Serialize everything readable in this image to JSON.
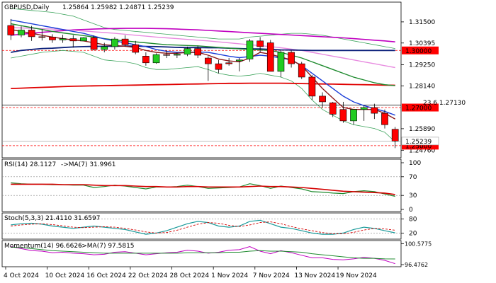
{
  "chart_data": [
    {
      "type": "candlestick",
      "symbol": "GBPUSD,Daily",
      "ohlc_readout": "1.25864 1.25982 1.24871 1.25239",
      "x_labels": [
        "4 Oct 2024",
        "10 Oct 2024",
        "16 Oct 2024",
        "22 Oct 2024",
        "28 Oct 2024",
        "1 Nov 2024",
        "7 Nov 2024",
        "13 Nov 2024",
        "19 Nov 2024"
      ],
      "x_label_index": [
        0,
        4,
        8,
        12,
        16,
        20,
        24,
        28,
        32
      ],
      "y_ticks": [
        1.315,
        1.3039,
        1.2925,
        1.2814,
        1.2589,
        1.2476
      ],
      "y_tick_labels": [
        "1.31500",
        "1.30395",
        "1.29250",
        "1.28140",
        "1.25890",
        "1.24760"
      ],
      "ylim": [
        1.244,
        1.325
      ],
      "levels": [
        {
          "value": 1.3,
          "label": "1.30000",
          "color": "#ff0000",
          "style": "dashed"
        },
        {
          "value": 1.27,
          "label": "1.27000",
          "color": "#ff0000",
          "style": "dashed"
        },
        {
          "value": 1.25,
          "label": "1.25000",
          "color": "#ff0000",
          "style": "dashed"
        }
      ],
      "current_price": {
        "value": 1.2524,
        "label": "1.25239"
      },
      "fib_level": {
        "value": 1.2713,
        "label": "23.6 1.27130"
      },
      "candles": [
        [
          1.3131,
          1.3165,
          1.3055,
          1.3081
        ],
        [
          1.3081,
          1.3127,
          1.3069,
          1.3107
        ],
        [
          1.3107,
          1.3129,
          1.305,
          1.3072
        ],
        [
          1.3072,
          1.3112,
          1.3052,
          1.307
        ],
        [
          1.307,
          1.3085,
          1.304,
          1.3055
        ],
        [
          1.3055,
          1.3082,
          1.304,
          1.3062
        ],
        [
          1.3062,
          1.308,
          1.3015,
          1.305
        ],
        [
          1.305,
          1.307,
          1.3055,
          1.3067
        ],
        [
          1.3067,
          1.3078,
          1.3,
          1.3005
        ],
        [
          1.3005,
          1.304,
          1.299,
          1.302
        ],
        [
          1.302,
          1.307,
          1.3005,
          1.306
        ],
        [
          1.306,
          1.308,
          1.302,
          1.303
        ],
        [
          1.303,
          1.305,
          1.298,
          1.299
        ],
        [
          1.297,
          1.299,
          1.292,
          1.2935
        ],
        [
          1.2935,
          1.2985,
          1.293,
          1.2978
        ],
        [
          1.2978,
          1.3,
          1.296,
          1.2975
        ],
        [
          1.2975,
          1.299,
          1.296,
          1.298
        ],
        [
          1.298,
          1.302,
          1.297,
          1.301
        ],
        [
          1.301,
          1.3025,
          1.296,
          1.2975
        ],
        [
          1.296,
          1.297,
          1.284,
          1.293
        ],
        [
          1.293,
          1.295,
          1.288,
          1.29
        ],
        [
          1.2935,
          1.296,
          1.292,
          1.293
        ],
        [
          1.2945,
          1.296,
          1.289,
          1.295
        ],
        [
          1.2955,
          1.306,
          1.294,
          1.305
        ],
        [
          1.305,
          1.307,
          1.299,
          1.302
        ],
        [
          1.304,
          1.3055,
          1.289,
          1.289
        ],
        [
          1.289,
          1.3,
          1.286,
          1.299
        ],
        [
          1.299,
          1.3,
          1.291,
          1.293
        ],
        [
          1.293,
          1.294,
          1.285,
          1.286
        ],
        [
          1.286,
          1.287,
          1.274,
          1.276
        ],
        [
          1.276,
          1.278,
          1.27,
          1.273
        ],
        [
          1.2725,
          1.273,
          1.265,
          1.2665
        ],
        [
          1.269,
          1.273,
          1.262,
          1.263
        ],
        [
          1.263,
          1.269,
          1.261,
          1.269
        ],
        [
          1.269,
          1.271,
          1.263,
          1.27
        ],
        [
          1.27,
          1.272,
          1.264,
          1.267
        ],
        [
          1.267,
          1.269,
          1.259,
          1.261
        ],
        [
          1.2586,
          1.2598,
          1.2487,
          1.2524
        ]
      ],
      "sma_fast": [
        1.299,
        1.3,
        1.3005,
        1.301,
        1.3012,
        1.3015,
        1.3018,
        1.302,
        1.3021,
        1.3022,
        1.3022,
        1.3023,
        1.3023,
        1.3021,
        1.302,
        1.3018,
        1.3016,
        1.3015,
        1.3015,
        1.3014,
        1.3014,
        1.3012,
        1.301,
        1.3008,
        1.3008,
        1.3005,
        1.3003,
        1.3002,
        1.3001,
        1.3,
        1.3,
        1.3,
        1.3,
        1.3,
        1.3,
        1.3,
        1.3,
        1.3
      ],
      "sma_slow": [
        1.28,
        1.2802,
        1.2804,
        1.2806,
        1.2808,
        1.281,
        1.2812,
        1.2813,
        1.2814,
        1.2815,
        1.2816,
        1.2817,
        1.2818,
        1.2819,
        1.282,
        1.2821,
        1.2822,
        1.2823,
        1.2824,
        1.2825,
        1.2826,
        1.2827,
        1.2827,
        1.2828,
        1.2828,
        1.2828,
        1.2828,
        1.2827,
        1.2826,
        1.2825,
        1.2824,
        1.2823,
        1.2822,
        1.2821,
        1.282,
        1.2819,
        1.2818,
        1.2817
      ],
      "sma_magenta": [
        1.308,
        1.3085,
        1.309,
        1.3095,
        1.31,
        1.3104,
        1.3108,
        1.311,
        1.3112,
        1.3114,
        1.3115,
        1.3116,
        1.3116,
        1.3116,
        1.3115,
        1.3114,
        1.3112,
        1.311,
        1.3108,
        1.3105,
        1.3102,
        1.3099,
        1.3096,
        1.3093,
        1.309,
        1.3087,
        1.3084,
        1.3081,
        1.3078,
        1.3075,
        1.3072,
        1.3069,
        1.3066,
        1.3062,
        1.3058,
        1.3054,
        1.305,
        1.3045
      ],
      "sma_pink": [
        1.312,
        1.3118,
        1.3116,
        1.3114,
        1.3112,
        1.311,
        1.3106,
        1.3102,
        1.3098,
        1.3094,
        1.309,
        1.3085,
        1.308,
        1.3075,
        1.307,
        1.3066,
        1.3062,
        1.3058,
        1.3054,
        1.305,
        1.3045,
        1.304,
        1.3035,
        1.303,
        1.3025,
        1.302,
        1.3014,
        1.3007,
        1.3,
        1.299,
        1.298,
        1.297,
        1.296,
        1.295,
        1.294,
        1.293,
        1.292,
        1.291
      ],
      "sma_green": [
        1.314,
        1.313,
        1.312,
        1.311,
        1.31,
        1.3092,
        1.3085,
        1.3078,
        1.307,
        1.3062,
        1.3055,
        1.305,
        1.3045,
        1.304,
        1.3035,
        1.303,
        1.3028,
        1.3026,
        1.3024,
        1.302,
        1.3016,
        1.3012,
        1.3008,
        1.3005,
        1.3003,
        1.3,
        1.299,
        1.2975,
        1.296,
        1.294,
        1.292,
        1.29,
        1.288,
        1.286,
        1.2845,
        1.283,
        1.282,
        1.2815
      ],
      "sma_blue": [
        1.316,
        1.315,
        1.314,
        1.313,
        1.312,
        1.311,
        1.31,
        1.309,
        1.3075,
        1.306,
        1.305,
        1.304,
        1.303,
        1.302,
        1.3005,
        1.2995,
        1.299,
        1.299,
        1.2992,
        1.299,
        1.298,
        1.297,
        1.2962,
        1.2968,
        1.2975,
        1.297,
        1.296,
        1.295,
        1.292,
        1.288,
        1.284,
        1.28,
        1.276,
        1.273,
        1.271,
        1.2695,
        1.268,
        1.266
      ],
      "sma_brown": [
        1.311,
        1.31,
        1.309,
        1.308,
        1.307,
        1.3062,
        1.3055,
        1.305,
        1.304,
        1.303,
        1.3026,
        1.3022,
        1.3015,
        1.3,
        1.299,
        1.2985,
        1.2985,
        1.299,
        1.299,
        1.2975,
        1.2955,
        1.2945,
        1.294,
        1.296,
        1.299,
        1.298,
        1.2965,
        1.295,
        1.292,
        1.286,
        1.28,
        1.275,
        1.27,
        1.269,
        1.269,
        1.269,
        1.267,
        1.264
      ],
      "bb_upper": [
        1.322,
        1.3215,
        1.321,
        1.3205,
        1.32,
        1.319,
        1.318,
        1.316,
        1.314,
        1.312,
        1.311,
        1.3105,
        1.31,
        1.3095,
        1.309,
        1.3085,
        1.308,
        1.3075,
        1.307,
        1.3065,
        1.306,
        1.306,
        1.306,
        1.307,
        1.3075,
        1.308,
        1.3085,
        1.309,
        1.309,
        1.3085,
        1.308,
        1.307,
        1.306,
        1.305,
        1.304,
        1.303,
        1.302,
        1.301
      ],
      "bb_lower": [
        1.296,
        1.297,
        1.298,
        1.299,
        1.2995,
        1.3,
        1.2995,
        1.299,
        1.297,
        1.295,
        1.2945,
        1.294,
        1.293,
        1.291,
        1.29,
        1.29,
        1.2905,
        1.291,
        1.2915,
        1.29,
        1.288,
        1.287,
        1.2865,
        1.287,
        1.288,
        1.287,
        1.286,
        1.284,
        1.28,
        1.274,
        1.269,
        1.266,
        1.263,
        1.261,
        1.26,
        1.259,
        1.257,
        1.252
      ]
    },
    {
      "type": "line",
      "name": "RSI(14) 28.1127",
      "signal_label": "->MA(7) 31.9961",
      "ylim": [
        0,
        100
      ],
      "y_ticks": [
        100,
        70,
        30,
        0
      ],
      "levels": [
        70,
        30
      ],
      "rsi": [
        57,
        55,
        54,
        54,
        53,
        53,
        52,
        52,
        47,
        49,
        52,
        50,
        47,
        44,
        48,
        48,
        49,
        52,
        49,
        45,
        46,
        47,
        48,
        55,
        51,
        45,
        50,
        47,
        44,
        38,
        37,
        35,
        34,
        38,
        40,
        38,
        33,
        28
      ],
      "ma": [
        54,
        54,
        54,
        54,
        54,
        53,
        53,
        53,
        52,
        51,
        51,
        51,
        50,
        49,
        49,
        48,
        48,
        49,
        49,
        48,
        48,
        48,
        48,
        49,
        50,
        49,
        49,
        48,
        47,
        45,
        43,
        41,
        39,
        38,
        37,
        36,
        35,
        32
      ]
    },
    {
      "type": "line",
      "name": "Stoch(5,3,3) 21.4110 31.6597",
      "ylim": [
        0,
        100
      ],
      "y_ticks": [
        80,
        20
      ],
      "levels": [
        80,
        20
      ],
      "k": [
        55,
        60,
        62,
        58,
        50,
        45,
        40,
        45,
        50,
        45,
        40,
        35,
        25,
        15,
        20,
        30,
        45,
        60,
        70,
        65,
        50,
        45,
        50,
        70,
        75,
        60,
        45,
        40,
        30,
        20,
        15,
        15,
        20,
        35,
        45,
        40,
        30,
        21
      ],
      "d": [
        50,
        55,
        58,
        60,
        56,
        51,
        45,
        43,
        45,
        47,
        45,
        40,
        33,
        25,
        20,
        22,
        32,
        45,
        58,
        65,
        62,
        53,
        48,
        55,
        65,
        68,
        60,
        48,
        38,
        30,
        22,
        17,
        17,
        23,
        33,
        40,
        38,
        32
      ]
    },
    {
      "type": "line",
      "name": "Momentum(14) 96.6626",
      "signal_label": "->MA(7) 97.5815",
      "ylim": [
        96.2,
        100.9
      ],
      "y_ticks": [
        100.5775,
        96.4762
      ],
      "y_tick_labels": [
        "100.5775",
        "96.4762"
      ],
      "mom": [
        100.0,
        99.6,
        99.2,
        99.1,
        98.8,
        98.9,
        98.7,
        98.6,
        98.4,
        98.5,
        98.9,
        99.0,
        98.7,
        98.4,
        98.6,
        98.8,
        98.9,
        99.3,
        99.1,
        98.7,
        98.9,
        99.3,
        99.4,
        100.0,
        99.1,
        98.6,
        99.2,
        98.8,
        98.3,
        97.8,
        97.8,
        97.5,
        97.4,
        97.6,
        97.9,
        97.7,
        97.3,
        96.66
      ],
      "ma": [
        99.9,
        99.8,
        99.6,
        99.4,
        99.2,
        99.1,
        99.0,
        98.9,
        98.8,
        98.7,
        98.7,
        98.7,
        98.7,
        98.7,
        98.7,
        98.7,
        98.7,
        98.8,
        98.8,
        98.8,
        98.8,
        98.9,
        98.9,
        99.1,
        99.2,
        99.1,
        99.1,
        99.0,
        98.9,
        98.6,
        98.4,
        98.2,
        98.0,
        97.8,
        97.7,
        97.7,
        97.6,
        97.58
      ]
    }
  ]
}
